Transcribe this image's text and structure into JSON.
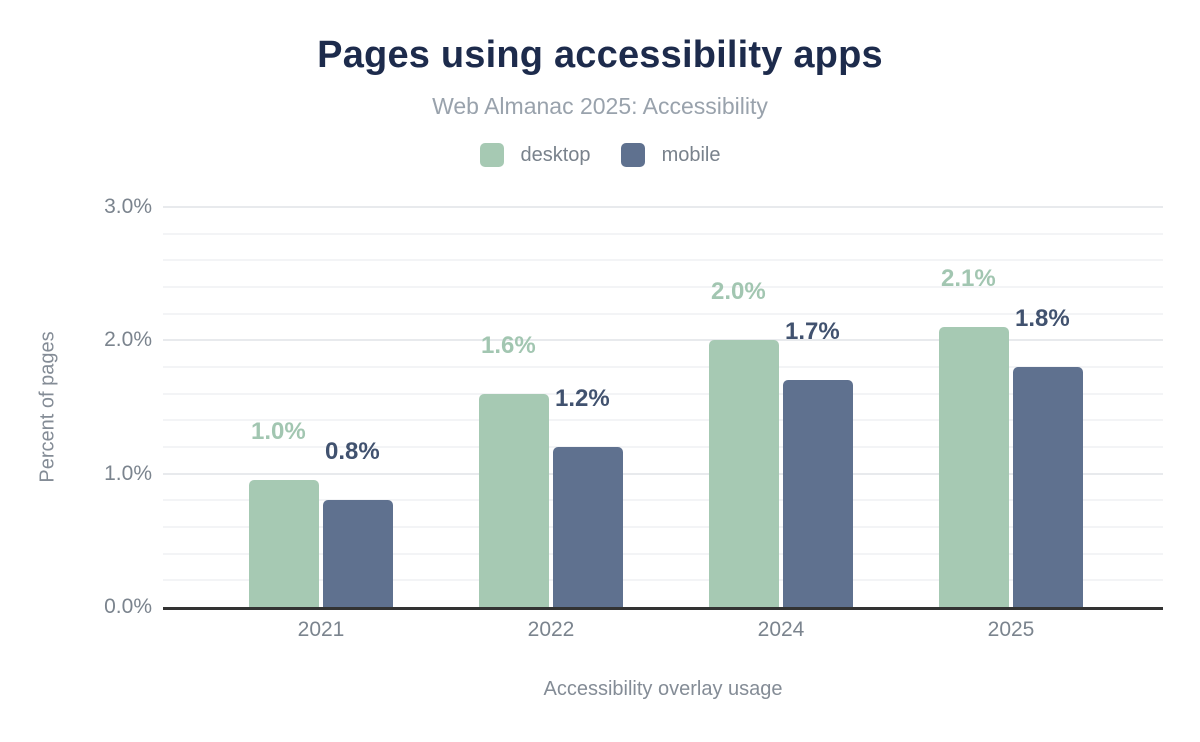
{
  "chart_data": {
    "type": "bar",
    "title": "Pages using accessibility apps",
    "subtitle": "Web Almanac 2025: Accessibility",
    "categories": [
      "2021",
      "2022",
      "2024",
      "2025"
    ],
    "series": [
      {
        "name": "desktop",
        "color": "#a6c9b3",
        "label_color": "#a2c6b1",
        "values": [
          0.95,
          1.6,
          2.0,
          2.1
        ],
        "labels": [
          "1.0%",
          "1.6%",
          "2.0%",
          "2.1%"
        ]
      },
      {
        "name": "mobile",
        "color": "#5f718f",
        "label_color": "#41526f",
        "values": [
          0.8,
          1.2,
          1.7,
          1.8
        ],
        "labels": [
          "0.8%",
          "1.2%",
          "1.7%",
          "1.8%"
        ]
      }
    ],
    "xlabel": "Accessibility overlay usage",
    "ylabel": "Percent of pages",
    "ylim": [
      0,
      3
    ],
    "yticks": [
      {
        "value": 0,
        "label": "0.0%"
      },
      {
        "value": 1,
        "label": "1.0%"
      },
      {
        "value": 2,
        "label": "2.0%"
      },
      {
        "value": 3,
        "label": "3.0%"
      }
    ],
    "grid": {
      "on": true,
      "minor_step": 0.2,
      "major_step": 1
    },
    "legend_position": "top",
    "axis_line_color": "#333333",
    "title_color": "#1d2b4c",
    "text_color": "#7b848e"
  }
}
